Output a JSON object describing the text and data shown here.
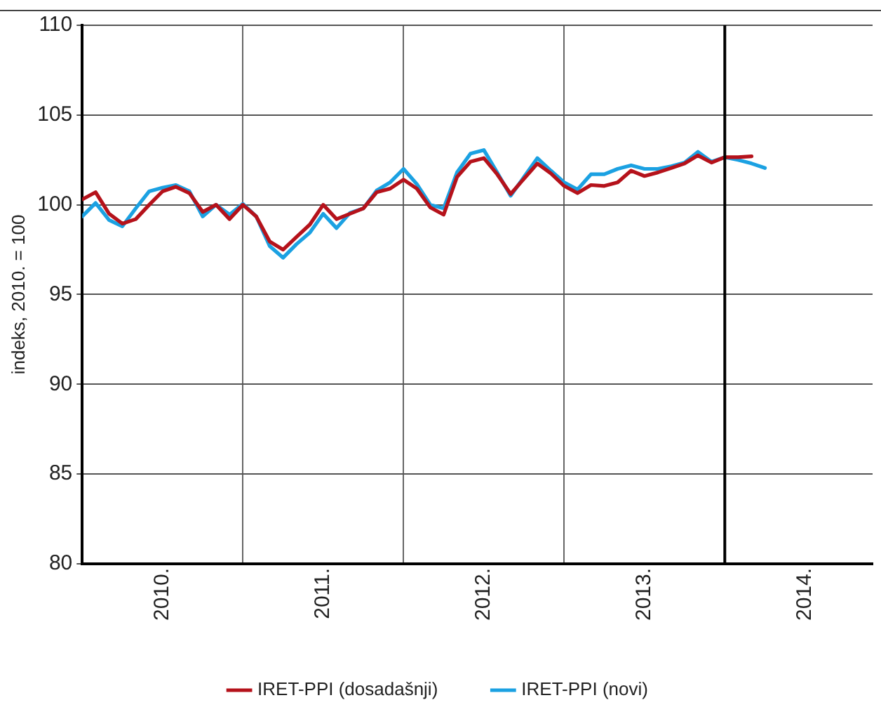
{
  "chart_data": {
    "type": "line",
    "ylabel": "indeks, 2010. = 100",
    "x": [
      2010.0,
      2010.083,
      2010.167,
      2010.25,
      2010.333,
      2010.417,
      2010.5,
      2010.583,
      2010.667,
      2010.75,
      2010.833,
      2010.917,
      2011.0,
      2011.083,
      2011.167,
      2011.25,
      2011.333,
      2011.417,
      2011.5,
      2011.583,
      2011.667,
      2011.75,
      2011.833,
      2011.917,
      2012.0,
      2012.083,
      2012.167,
      2012.25,
      2012.333,
      2012.417,
      2012.5,
      2012.583,
      2012.667,
      2012.75,
      2012.833,
      2012.917,
      2013.0,
      2013.083,
      2013.167,
      2013.25,
      2013.333,
      2013.417,
      2013.5,
      2013.583,
      2013.667,
      2013.75,
      2013.833,
      2013.917,
      2014.0,
      2014.083,
      2014.167,
      2014.25
    ],
    "series": [
      {
        "name": "IRET-PPI (dosadašnji)",
        "color": "#b5121b",
        "values": [
          100.3,
          100.7,
          99.5,
          98.95,
          99.2,
          100.0,
          100.75,
          101.0,
          100.65,
          99.6,
          100.0,
          99.2,
          100.0,
          99.35,
          97.95,
          97.5,
          98.2,
          98.9,
          100.0,
          99.2,
          99.5,
          99.8,
          100.7,
          100.9,
          101.4,
          100.9,
          99.85,
          99.45,
          101.55,
          102.4,
          102.6,
          101.7,
          100.6,
          101.45,
          102.3,
          101.75,
          101.05,
          100.65,
          101.1,
          101.05,
          101.25,
          101.9,
          101.6,
          101.8,
          102.05,
          102.3,
          102.75,
          102.35,
          102.65,
          102.65,
          102.7,
          null
        ]
      },
      {
        "name": "IRET-PPI (novi)",
        "color": "#1ba1e2",
        "values": [
          99.35,
          100.1,
          99.15,
          98.8,
          99.8,
          100.75,
          100.95,
          101.1,
          100.75,
          99.35,
          100.0,
          99.45,
          100.05,
          99.35,
          97.7,
          97.05,
          97.8,
          98.45,
          99.5,
          98.7,
          99.55,
          99.8,
          100.8,
          101.25,
          102.0,
          101.15,
          100.0,
          99.8,
          101.8,
          102.85,
          103.05,
          101.8,
          100.5,
          101.55,
          102.6,
          101.9,
          101.25,
          100.85,
          101.7,
          101.7,
          102.0,
          102.2,
          102.0,
          102.0,
          102.15,
          102.35,
          102.95,
          102.4,
          102.65,
          102.5,
          102.3,
          102.05
        ]
      }
    ],
    "xlim": [
      2010,
      2014.92
    ],
    "xticks": [
      {
        "value": 2010.5,
        "label": "2010."
      },
      {
        "value": 2011,
        "label": null
      },
      {
        "value": 2011.5,
        "label": "2011."
      },
      {
        "value": 2012,
        "label": null
      },
      {
        "value": 2012.5,
        "label": "2012."
      },
      {
        "value": 2013,
        "label": null
      },
      {
        "value": 2013.5,
        "label": "2013."
      },
      {
        "value": 2014,
        "label": null
      },
      {
        "value": 2014.5,
        "label": "2014."
      }
    ],
    "ylim": [
      80,
      110
    ],
    "yticks": [
      80,
      85,
      90,
      95,
      100,
      105,
      110
    ],
    "ref_lines": [
      {
        "axis": "x",
        "value": 2014,
        "color": "#000000"
      }
    ],
    "grid": true,
    "legend": "bottom",
    "marker": "none",
    "line_style": "solid"
  }
}
